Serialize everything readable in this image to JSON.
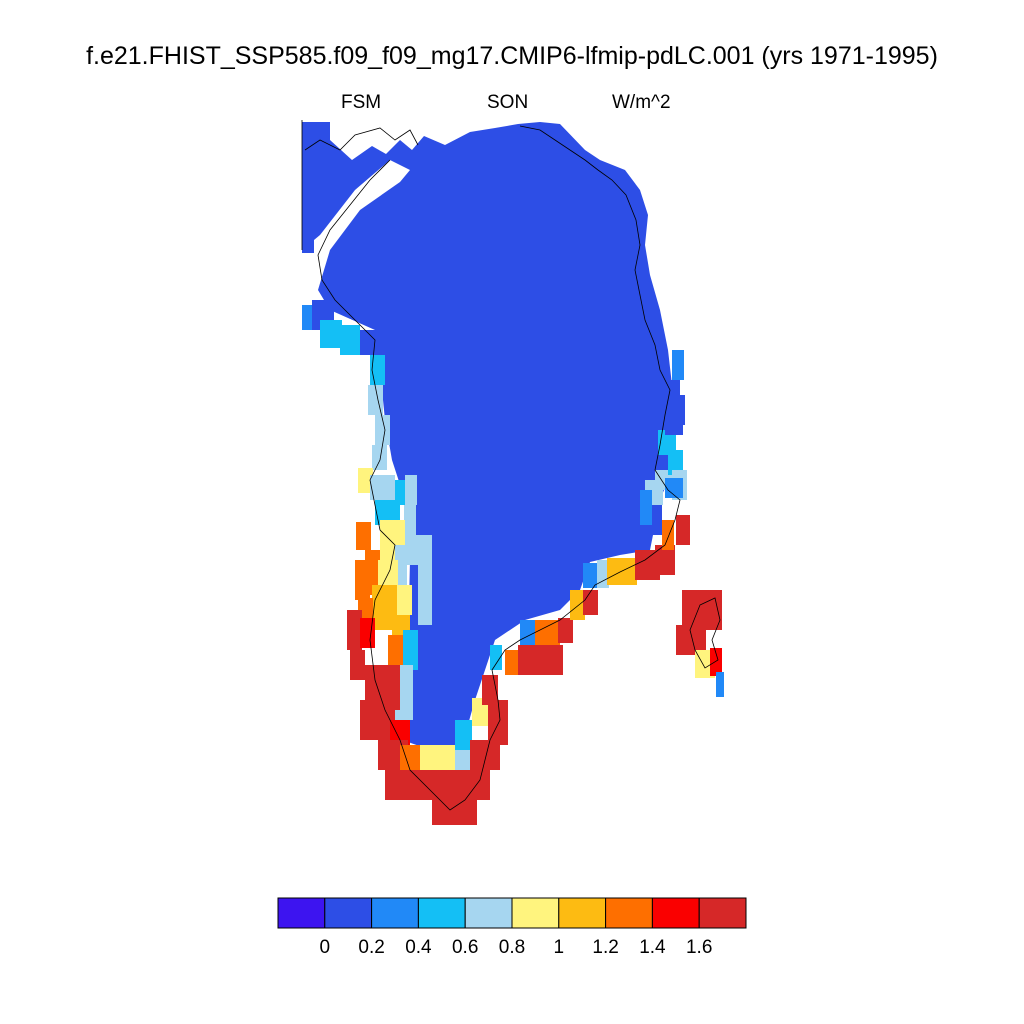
{
  "title": "f.e21.FHIST_SSP585.f09_f09_mg17.CMIP6-lfmip-pdLC.001 (yrs 1971-1995)",
  "subtitle_left": "FSM",
  "subtitle_center": "SON",
  "subtitle_right": "W/m^2",
  "colorbar": {
    "colors": [
      "#3d14f0",
      "#2d4ee6",
      "#2189f7",
      "#14bff5",
      "#a6d6f0",
      "#fff47e",
      "#fdbb12",
      "#fe6f00",
      "#fa0000",
      "#d62828"
    ],
    "labels": [
      "0",
      "0.2",
      "0.4",
      "0.6",
      "0.8",
      "1",
      "1.2",
      "1.4",
      "1.6"
    ]
  },
  "map_colors": {
    "interior": "#2d4ee6",
    "coast": "#000000"
  }
}
